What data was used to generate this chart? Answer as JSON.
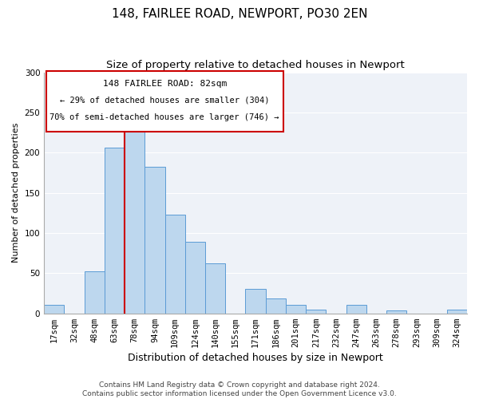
{
  "title": "148, FAIRLEE ROAD, NEWPORT, PO30 2EN",
  "subtitle": "Size of property relative to detached houses in Newport",
  "xlabel": "Distribution of detached houses by size in Newport",
  "ylabel": "Number of detached properties",
  "categories": [
    "17sqm",
    "32sqm",
    "48sqm",
    "63sqm",
    "78sqm",
    "94sqm",
    "109sqm",
    "124sqm",
    "140sqm",
    "155sqm",
    "171sqm",
    "186sqm",
    "201sqm",
    "217sqm",
    "232sqm",
    "247sqm",
    "263sqm",
    "278sqm",
    "293sqm",
    "309sqm",
    "324sqm"
  ],
  "values": [
    11,
    0,
    52,
    206,
    240,
    182,
    123,
    89,
    62,
    0,
    30,
    19,
    11,
    5,
    0,
    11,
    0,
    4,
    0,
    0,
    5
  ],
  "bar_color": "#bdd7ee",
  "bar_edge_color": "#5b9bd5",
  "vline_x_index": 4,
  "vline_color": "#cc0000",
  "annotation_title": "148 FAIRLEE ROAD: 82sqm",
  "annotation_line1": "← 29% of detached houses are smaller (304)",
  "annotation_line2": "70% of semi-detached houses are larger (746) →",
  "ylim": [
    0,
    300
  ],
  "yticks": [
    0,
    50,
    100,
    150,
    200,
    250,
    300
  ],
  "bg_color": "#eef2f8",
  "grid_color": "#ffffff",
  "footer_line1": "Contains HM Land Registry data © Crown copyright and database right 2024.",
  "footer_line2": "Contains public sector information licensed under the Open Government Licence v3.0.",
  "title_fontsize": 11,
  "subtitle_fontsize": 9.5,
  "xlabel_fontsize": 9,
  "ylabel_fontsize": 8,
  "tick_fontsize": 7.5,
  "footer_fontsize": 6.5,
  "annot_fontsize_title": 8,
  "annot_fontsize_body": 7.5
}
